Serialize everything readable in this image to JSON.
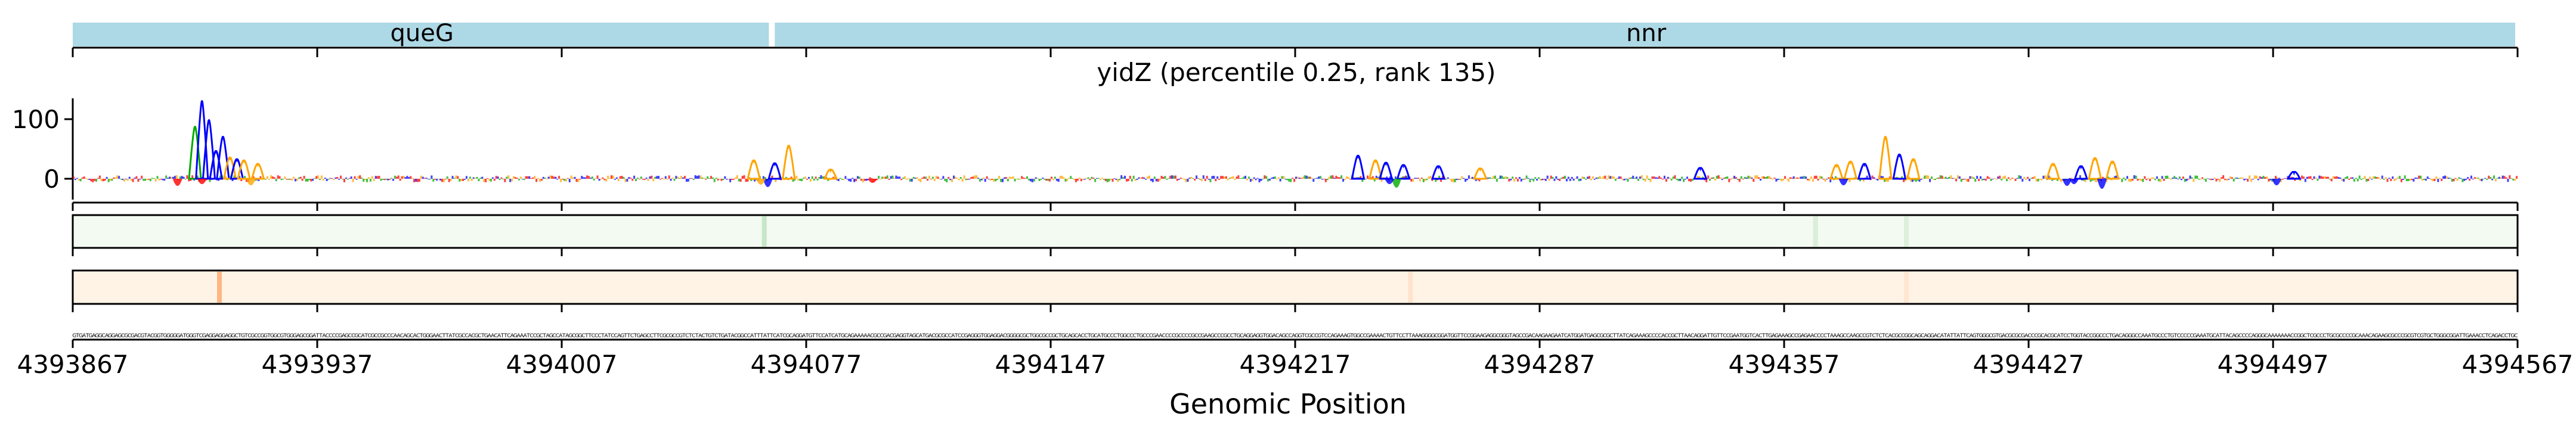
{
  "chart_data": {
    "type": "line",
    "title": "yidZ (percentile 0.25, rank 135)",
    "xlabel": "Genomic Position",
    "ylabel": "",
    "xlim": [
      4393867,
      4394567
    ],
    "x_ticks": [
      4393867,
      4393937,
      4394007,
      4394077,
      4394147,
      4394217,
      4394287,
      4394357,
      4394427,
      4394497,
      4394567
    ],
    "x_tick_labels": [
      "4393867",
      "4393937",
      "4394007",
      "4394077",
      "4394147",
      "4394217",
      "4394287",
      "4394357",
      "4394427",
      "4394497",
      "4394567"
    ],
    "ylim": [
      -35,
      135
    ],
    "y_ticks": [
      0,
      100
    ],
    "y_tick_labels": [
      "0",
      "100"
    ],
    "genes": [
      {
        "name": "queG",
        "start": 4393867,
        "end": 4394067
      },
      {
        "name": "nnr",
        "start": 4394068,
        "end": 4394567
      }
    ],
    "logo_peaks": [
      {
        "x": 4393902,
        "value": 87,
        "color": "#00aa00"
      },
      {
        "x": 4393904,
        "value": 130,
        "color": "#0000ff"
      },
      {
        "x": 4393906,
        "value": 98,
        "color": "#0000ff"
      },
      {
        "x": 4393908,
        "value": 46,
        "color": "#0000ff"
      },
      {
        "x": 4393910,
        "value": 70,
        "color": "#0000ff"
      },
      {
        "x": 4393912,
        "value": 35,
        "color": "#ffa500"
      },
      {
        "x": 4393914,
        "value": 32,
        "color": "#0000ff"
      },
      {
        "x": 4393916,
        "value": 30,
        "color": "#ffa500"
      },
      {
        "x": 4393920,
        "value": 24,
        "color": "#ffa500"
      },
      {
        "x": 4394062,
        "value": 30,
        "color": "#ffa500"
      },
      {
        "x": 4394068,
        "value": 25,
        "color": "#0000ff"
      },
      {
        "x": 4394072,
        "value": 55,
        "color": "#ffa500"
      },
      {
        "x": 4394084,
        "value": 14,
        "color": "#ffa500"
      },
      {
        "x": 4394235,
        "value": 38,
        "color": "#0000ff"
      },
      {
        "x": 4394240,
        "value": 30,
        "color": "#ffa500"
      },
      {
        "x": 4394243,
        "value": 26,
        "color": "#0000ff"
      },
      {
        "x": 4394248,
        "value": 22,
        "color": "#0000ff"
      },
      {
        "x": 4394258,
        "value": 20,
        "color": "#0000ff"
      },
      {
        "x": 4394270,
        "value": 16,
        "color": "#ffa500"
      },
      {
        "x": 4394333,
        "value": 17,
        "color": "#0000ff"
      },
      {
        "x": 4394372,
        "value": 22,
        "color": "#ffa500"
      },
      {
        "x": 4394376,
        "value": 28,
        "color": "#ffa500"
      },
      {
        "x": 4394380,
        "value": 24,
        "color": "#0000ff"
      },
      {
        "x": 4394386,
        "value": 70,
        "color": "#ffa500"
      },
      {
        "x": 4394390,
        "value": 40,
        "color": "#0000ff"
      },
      {
        "x": 4394394,
        "value": 32,
        "color": "#ffa500"
      },
      {
        "x": 4394434,
        "value": 24,
        "color": "#ffa500"
      },
      {
        "x": 4394442,
        "value": 20,
        "color": "#0000ff"
      },
      {
        "x": 4394446,
        "value": 34,
        "color": "#ffa500"
      },
      {
        "x": 4394451,
        "value": 28,
        "color": "#ffa500"
      },
      {
        "x": 4394503,
        "value": 10,
        "color": "#0000ff"
      }
    ],
    "logo_dips": [
      {
        "x": 4393897,
        "value": -18,
        "color": "#ff0000"
      },
      {
        "x": 4393904,
        "value": -12,
        "color": "#ff0000"
      },
      {
        "x": 4393918,
        "value": -16,
        "color": "#ffa500"
      },
      {
        "x": 4394066,
        "value": -22,
        "color": "#0000ff"
      },
      {
        "x": 4394064,
        "value": -14,
        "color": "#ffa500"
      },
      {
        "x": 4394096,
        "value": -8,
        "color": "#ff0000"
      },
      {
        "x": 4394246,
        "value": -24,
        "color": "#00aa00"
      },
      {
        "x": 4394244,
        "value": -12,
        "color": "#0000ff"
      },
      {
        "x": 4394374,
        "value": -16,
        "color": "#0000ff"
      },
      {
        "x": 4394438,
        "value": -18,
        "color": "#0000ff"
      },
      {
        "x": 4394440,
        "value": -12,
        "color": "#0000ff"
      },
      {
        "x": 4394448,
        "value": -28,
        "color": "#0000ff"
      },
      {
        "x": 4394498,
        "value": -16,
        "color": "#0000ff"
      }
    ],
    "track1": {
      "colormap": "greens",
      "highlights": [
        {
          "x": 4394065,
          "intensity": 0.35
        },
        {
          "x": 4394366,
          "intensity": 0.2
        },
        {
          "x": 4394392,
          "intensity": 0.18
        }
      ]
    },
    "track2": {
      "colormap": "oranges",
      "highlights": [
        {
          "x": 4393909,
          "intensity": 0.6
        },
        {
          "x": 4394250,
          "intensity": 0.15
        },
        {
          "x": 4394392,
          "intensity": 0.12
        }
      ]
    },
    "sequence": "GTGATGAGGCAGGAGCGCGACGTACGGTGGGGGATGGGTCGAGGAGGAGGCTGTCGCCGGTGGCGTGGGAGCGGATTACCCCGAGCCGCATCGCCGCCCAACAGCACTGGGAACTTATCGCCACGCTGAACATTCAGAAATCCGCTAGCCATAGCGGCTTCCCTATCCAGTTCTGAGCCTTCGCGCCGTCTCTACTGTCTGATACGGCCATTTATTCATCGCAGGATGTTCCATCATGCAGAAAAACGCCGACGAGGTAGCATGACGCGCCATCCGAGGGTGGAGGACGGGGCGCTGGCGCCGCTGCAGCACCTGCATGCCCTGGCCCTGCCCGAACCCCGCCCCGCCGAAGCCCGCCTGCAGGAGGTGGACAGCCAGGTCGCCGTCCAGAAAGTGGCCGAAAACTGTTCCTTAAAGGGGCGGATGGTTCCGGAAGAGGCGGGTAGCCGACAAGAAGAATCATGGATGAGCGCGCTTATCAGAAAGCCCCACCGCTTAACAGGATTGTTCCGAATGGTCACTTGAGAAAGCCGAGAACCCCTAAAGCCAAGCCGTCTCTCACGCCGGCAGCAGGACATATTATTCAGTGGGCGTGACGCGCGACCCGCACGCATCCTGGTACCGGCCCTGACAGGGCCAAATGCCCTGTCCCCCGAAATGCATTACAGCCCCAGGGCAAAAAAACCGGCTCGCCCTGCGCCCCGCAAACAGAAGCGCCCGCGTCGTGCTGGGCGGATTGAAACCTCAGACCTGC"
  }
}
